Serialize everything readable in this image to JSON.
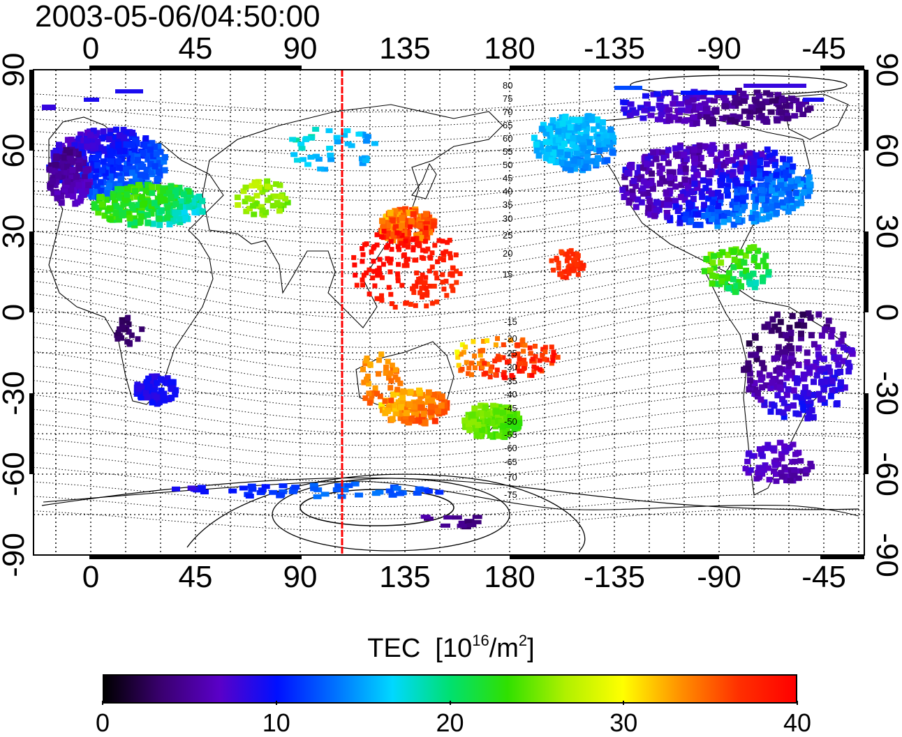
{
  "title": "2003-05-06/04:50:00",
  "colorbar": {
    "title_main": "TEC",
    "title_unit_prefix": "[10",
    "title_unit_exp": "16",
    "title_unit_mid": "/m",
    "title_unit_exp2": "2",
    "title_unit_suffix": "]",
    "min": 0,
    "max": 40,
    "tick_labels": [
      "0",
      "10",
      "20",
      "30",
      "40"
    ],
    "colormap": [
      "#000000",
      "#3a0070",
      "#5a00c8",
      "#0010ff",
      "#0070ff",
      "#00d8ff",
      "#00e070",
      "#30e000",
      "#b0f000",
      "#ffff00",
      "#ff9000",
      "#ff3000",
      "#ff0000"
    ]
  },
  "map": {
    "lon_tick_labels": [
      "0",
      "45",
      "90",
      "135",
      "180",
      "-135",
      "-90",
      "-45"
    ],
    "lat_tick_labels": [
      "90",
      "60",
      "30",
      "0",
      "-30",
      "-60",
      "-90"
    ],
    "contour_labels": [
      "80",
      "75",
      "70",
      "65",
      "60",
      "55",
      "50",
      "45",
      "40",
      "35",
      "30",
      "25",
      "20",
      "15",
      "-15",
      "-20",
      "-25",
      "-30",
      "-35",
      "-40",
      "-45",
      "-50",
      "-55",
      "-60",
      "-65",
      "-70",
      "-75"
    ],
    "marker_longitude_deg": 108,
    "marker_color": "#ff0000"
  }
}
